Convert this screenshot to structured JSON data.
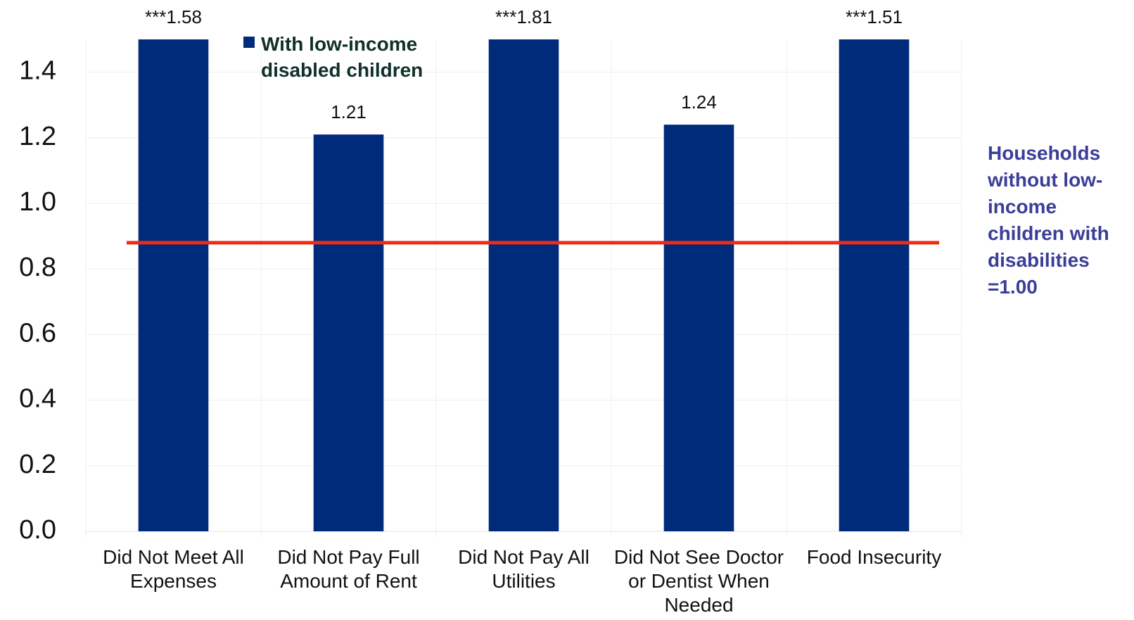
{
  "chart_data": {
    "type": "bar",
    "categories": [
      "Did Not Meet All Expenses",
      "Did Not Pay Full Amount of Rent",
      "Did Not Pay All Utilities",
      "Did Not See Doctor or Dentist When Needed",
      "Food Insecurity"
    ],
    "series": [
      {
        "name": "With low-income disabled children",
        "color": "#002a7a",
        "values": [
          1.58,
          1.21,
          1.81,
          1.24,
          1.51
        ],
        "value_labels": [
          "***1.58",
          "1.21",
          "***1.81",
          "1.24",
          "***1.51"
        ]
      }
    ],
    "ylim": [
      0,
      1.5
    ],
    "yticks": [
      {
        "value": 0,
        "label": "0.0"
      },
      0.2,
      0.4,
      0.6,
      0.8,
      {
        "value": 1,
        "label": "1.0"
      },
      1.2,
      1.4
    ],
    "grid": true,
    "legend": "top",
    "reference_line": {
      "value": 0.88,
      "color": "#f02a16",
      "label": "Households without low-income children with disabilities =1.00",
      "label_color": "#3a3e99"
    }
  }
}
